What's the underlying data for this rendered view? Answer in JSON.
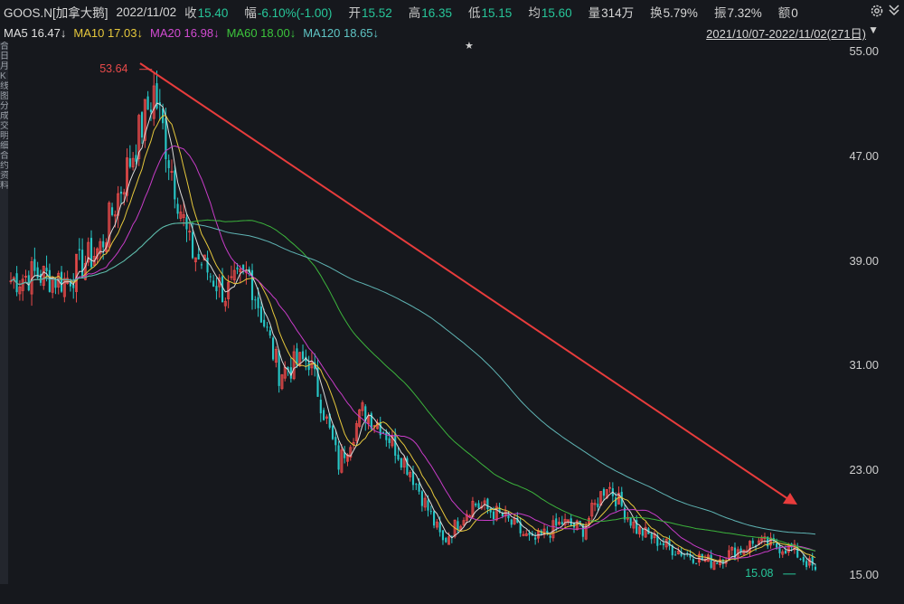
{
  "header": {
    "code": "GOOS.N[加拿大鹅]",
    "date": "2022/11/02",
    "close_label": "收",
    "close": "15.40",
    "change_label": "幅",
    "change": "-6.10%(-1.00)",
    "open_label": "开",
    "open": "15.52",
    "high_label": "高",
    "high": "16.35",
    "low_label": "低",
    "low": "15.15",
    "avg_label": "均",
    "avg": "15.60",
    "vol_label": "量",
    "vol": "314万",
    "turnover_label": "换",
    "turnover": "5.79%",
    "amplitude_label": "振",
    "amplitude": "7.32%",
    "amount_label": "额",
    "amount": "0"
  },
  "ma_row": {
    "ma5": "MA5 16.47↓",
    "ma10": "MA10 17.03↓",
    "ma20": "MA20 16.98↓",
    "ma60": "MA60 18.00↓",
    "ma120": "MA120 18.65↓",
    "range": "2021/10/07-2022/11/02(271日)"
  },
  "leftbar": [
    "合",
    "日",
    "月",
    "K",
    "线",
    "图",
    "分",
    "成",
    "交",
    "明",
    "细",
    "合",
    "约",
    "资",
    "料"
  ],
  "colors": {
    "up": "#e84a4a",
    "down": "#27c7c7",
    "ma5": "#dcdcdc",
    "ma10": "#e6c83c",
    "ma20": "#c83cc8",
    "ma60": "#3cb43c",
    "ma120": "#5fb4b4",
    "trend_arrow": "#e83c3c"
  },
  "icons": [
    "gear-icon",
    "chevron-down-icon",
    "star-icon"
  ],
  "chart_data": {
    "type": "candlestick",
    "ylim": [
      15.0,
      55.0
    ],
    "yticks": [
      "55.00",
      "47.00",
      "39.00",
      "31.00",
      "23.00",
      "15.00"
    ],
    "max_marker": "53.64",
    "min_marker": "15.08",
    "n_days": 271,
    "close_path_days": [
      0,
      8,
      18,
      30,
      48,
      60,
      72,
      80,
      90,
      100,
      110,
      118,
      124,
      134,
      145,
      155,
      165,
      175,
      185,
      192,
      200,
      210,
      222,
      235,
      250,
      262,
      270
    ],
    "close_path_values": [
      37.5,
      38.0,
      37.5,
      40.0,
      52.0,
      40.0,
      36.5,
      38.0,
      30.5,
      31.5,
      23.5,
      27.5,
      26.5,
      23.0,
      17.5,
      20.5,
      19.5,
      17.5,
      19.0,
      18.5,
      22.0,
      18.5,
      17.0,
      16.0,
      17.5,
      17.0,
      15.4
    ]
  }
}
